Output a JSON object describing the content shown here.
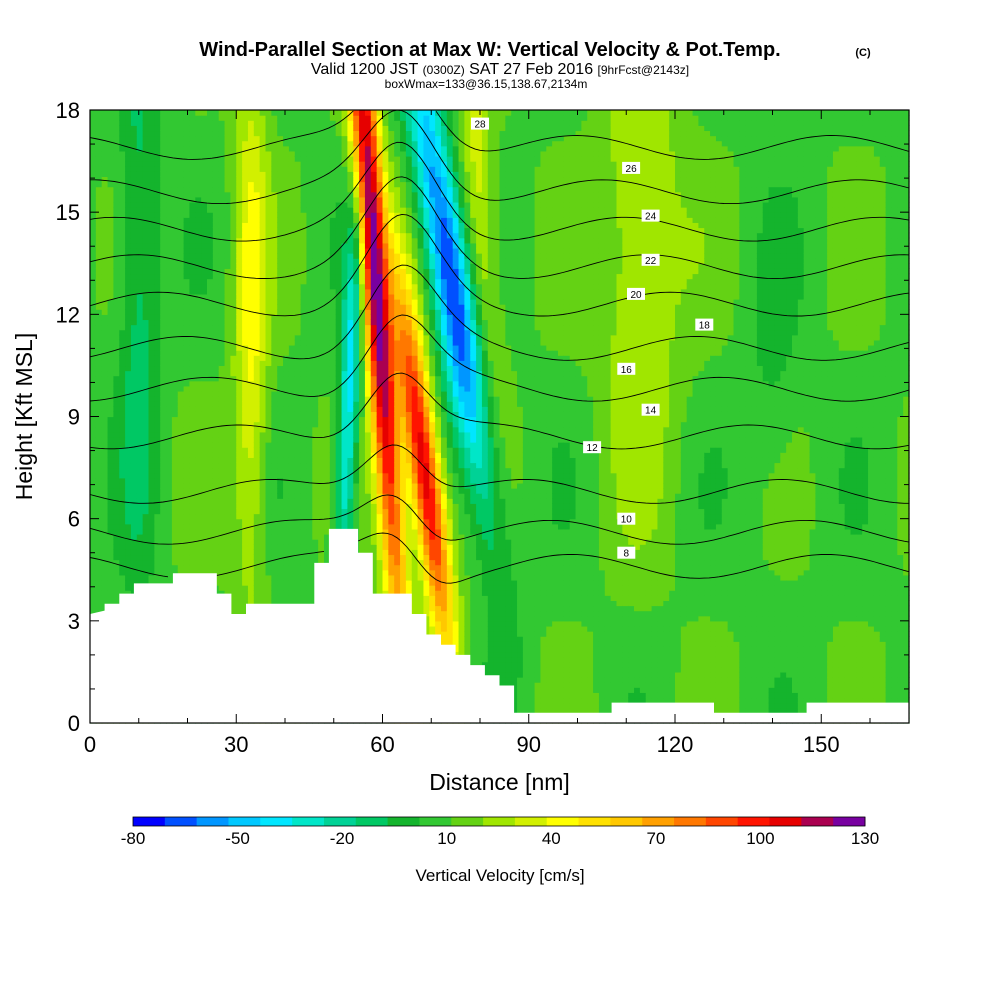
{
  "header": {
    "title": "Wind-Parallel Section at Max W: Vertical Velocity & Pot.Temp.",
    "copyright": "(C)",
    "valid_a": "Valid 1200 JST",
    "valid_z": "(0300Z)",
    "valid_b": "SAT 27 Feb 2016",
    "forecast": "[9hrFcst@2143z]",
    "box": "boxWmax=133@36.15,138.67,2134m"
  },
  "chart_data": {
    "type": "contour-section",
    "xlabel": "Distance [nm]",
    "ylabel": "Height [Kft MSL]",
    "xlim": [
      0,
      168
    ],
    "ylim": [
      0,
      18
    ],
    "x_ticks": [
      "0",
      "30",
      "60",
      "90",
      "120",
      "150"
    ],
    "y_ticks": [
      "0",
      "3",
      "6",
      "9",
      "12",
      "15",
      "18"
    ],
    "x_tick_values": [
      0,
      30,
      60,
      90,
      120,
      150
    ],
    "y_tick_values": [
      0,
      3,
      6,
      9,
      12,
      15,
      18
    ],
    "colorbar": {
      "label": "Vertical Velocity [cm/s]",
      "tick_labels": [
        "-80",
        "-50",
        "-20",
        "10",
        "40",
        "70",
        "100",
        "130"
      ],
      "tick_values": [
        -80,
        -50,
        -20,
        10,
        40,
        70,
        100,
        130
      ],
      "levels": [
        -80,
        -70,
        -60,
        -50,
        -40,
        -30,
        -20,
        -10,
        0,
        10,
        20,
        30,
        40,
        50,
        60,
        70,
        80,
        90,
        100,
        110,
        120,
        130
      ],
      "colors": [
        "#0000ff",
        "#0050ff",
        "#0096ff",
        "#00c8ff",
        "#00e6ff",
        "#00e6c8",
        "#00d296",
        "#00c864",
        "#14b42d",
        "#32c832",
        "#64d214",
        "#a0e600",
        "#d2f000",
        "#ffff00",
        "#ffe100",
        "#ffc800",
        "#ffa000",
        "#ff7800",
        "#ff4600",
        "#ff1400",
        "#e60000",
        "#aa0050",
        "#7800a0"
      ]
    },
    "terrain_kft": [
      [
        0,
        3.2
      ],
      [
        3,
        3.3
      ],
      [
        3,
        3.5
      ],
      [
        6,
        3.5
      ],
      [
        6,
        3.8
      ],
      [
        9,
        3.8
      ],
      [
        9,
        4.1
      ],
      [
        17,
        4.1
      ],
      [
        17,
        4.4
      ],
      [
        26,
        4.4
      ],
      [
        26,
        3.8
      ],
      [
        29,
        3.8
      ],
      [
        29,
        3.2
      ],
      [
        32,
        3.2
      ],
      [
        32,
        3.5
      ],
      [
        46,
        3.5
      ],
      [
        46,
        4.7
      ],
      [
        49,
        4.7
      ],
      [
        49,
        5.7
      ],
      [
        55,
        5.7
      ],
      [
        55,
        5.0
      ],
      [
        58,
        5.0
      ],
      [
        58,
        3.8
      ],
      [
        66,
        3.8
      ],
      [
        66,
        3.2
      ],
      [
        69,
        3.2
      ],
      [
        69,
        2.6
      ],
      [
        72,
        2.6
      ],
      [
        72,
        2.3
      ],
      [
        75,
        2.3
      ],
      [
        75,
        2.0
      ],
      [
        78,
        2.0
      ],
      [
        78,
        1.7
      ],
      [
        81,
        1.7
      ],
      [
        81,
        1.4
      ],
      [
        84,
        1.4
      ],
      [
        84,
        1.1
      ],
      [
        87,
        1.1
      ],
      [
        87,
        0.3
      ],
      [
        107,
        0.3
      ],
      [
        107,
        0.6
      ],
      [
        128,
        0.6
      ],
      [
        128,
        0.3
      ],
      [
        147,
        0.3
      ],
      [
        147,
        0.6
      ],
      [
        168,
        0.6
      ]
    ],
    "w_features": [
      {
        "x": 58,
        "z": 14,
        "sx": 2.0,
        "sz": 9.0,
        "tilt": -0.5,
        "w": 130
      },
      {
        "x": 68.5,
        "z": 7.5,
        "sx": 2.3,
        "sz": 3.8,
        "tilt": -0.9,
        "w": 115
      },
      {
        "x": 74,
        "z": 13,
        "sx": 3.0,
        "sz": 5.0,
        "tilt": -1.1,
        "w": -90
      },
      {
        "x": 53,
        "z": 9,
        "sx": 1.5,
        "sz": 5.0,
        "tilt": 0.3,
        "w": -55
      },
      {
        "x": 33,
        "z": 12,
        "sx": 2.5,
        "sz": 6.0,
        "tilt": 0.0,
        "w": 35
      },
      {
        "x": 80,
        "z": 15,
        "sx": 2.5,
        "sz": 4.0,
        "tilt": -0.4,
        "w": 30
      },
      {
        "x": 10,
        "z": 13,
        "sx": 3.0,
        "sz": 6.0,
        "tilt": 0.0,
        "w": -25
      },
      {
        "x": 113,
        "z": 14,
        "sx": 6.0,
        "sz": 5.0,
        "tilt": 0.0,
        "w": 25
      },
      {
        "x": 140,
        "z": 10,
        "sx": 4.0,
        "sz": 3.0,
        "tilt": 0.0,
        "w": -10
      }
    ],
    "theta_contours": [
      {
        "label": "8",
        "base": 4.6,
        "lx": 110,
        "ly": 5.0
      },
      {
        "label": "10",
        "base": 5.6,
        "lx": 110,
        "ly": 6.0
      },
      {
        "label": "12",
        "base": 6.8,
        "lx": 103,
        "ly": 8.1
      },
      {
        "label": "14",
        "base": 8.4,
        "lx": 115,
        "ly": 9.2
      },
      {
        "label": "16",
        "base": 9.8,
        "lx": 110,
        "ly": 10.4
      },
      {
        "label": "18",
        "base": 11.0,
        "lx": 126,
        "ly": 11.7
      },
      {
        "label": "20",
        "base": 12.3,
        "lx": 112,
        "ly": 12.6
      },
      {
        "label": "22",
        "base": 13.4,
        "lx": 115,
        "ly": 13.6
      },
      {
        "label": "24",
        "base": 14.5,
        "lx": 115,
        "ly": 14.9
      },
      {
        "label": "26",
        "base": 15.6,
        "lx": 111,
        "ly": 16.3
      },
      {
        "label": "28",
        "base": 16.9,
        "lx": 80,
        "ly": 17.6
      }
    ]
  }
}
